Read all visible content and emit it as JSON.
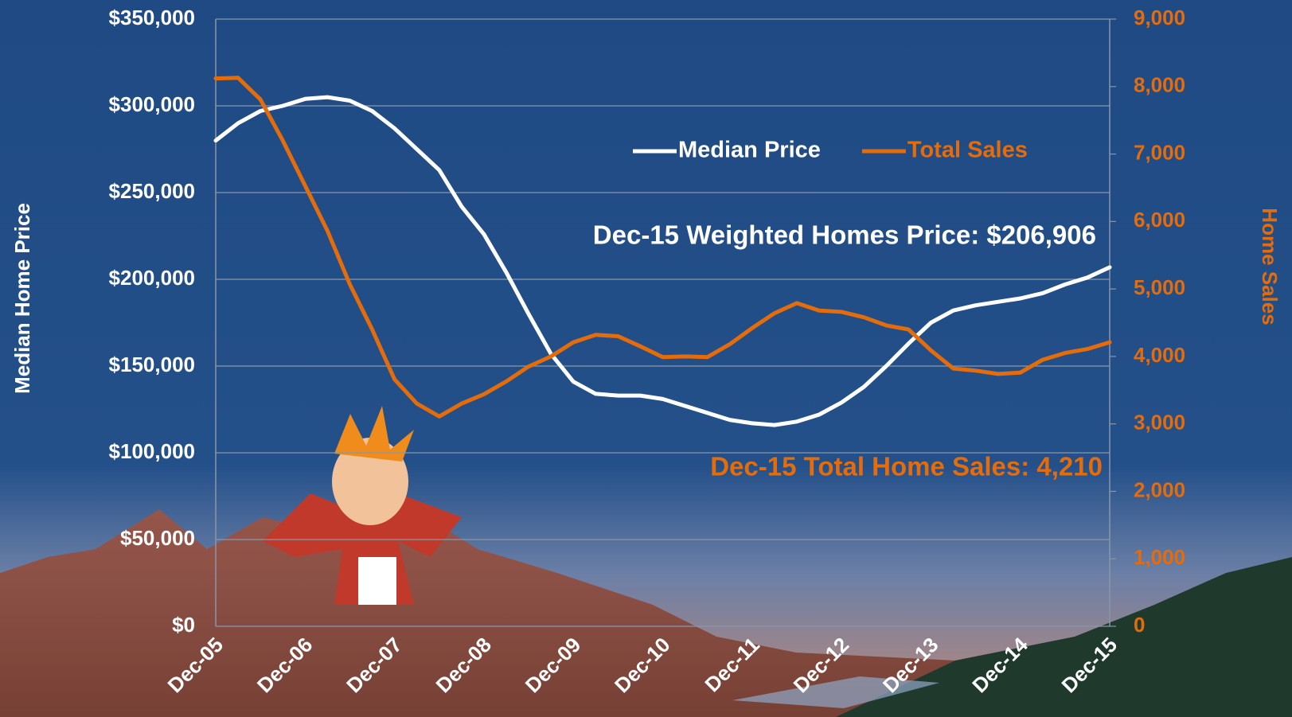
{
  "chart_data": {
    "type": "line",
    "y_label": "Median Home Price",
    "y2_label": "Home Sales",
    "annotations": [
      "Dec-15 Weighted Homes Price: $206,906",
      "Dec-15 Total Home Sales: 4,210"
    ],
    "legend": "upper right",
    "categories": [
      "Dec-05",
      null,
      null,
      null,
      "Dec-06",
      null,
      null,
      null,
      "Dec-07",
      null,
      null,
      null,
      "Dec-08",
      null,
      null,
      null,
      "Dec-09",
      null,
      null,
      null,
      "Dec-10",
      null,
      null,
      null,
      "Dec-11",
      null,
      null,
      null,
      "Dec-12",
      null,
      null,
      null,
      "Dec-13",
      null,
      null,
      null,
      "Dec-14",
      null,
      null,
      null,
      "Dec-15"
    ],
    "series": [
      {
        "name": "Median Price",
        "color": "#ffffff",
        "values": [
          280000,
          290000,
          297000,
          300000,
          304000,
          305000,
          303000,
          297000,
          287000,
          275000,
          263000,
          242000,
          226000,
          204000,
          180000,
          157000,
          141000,
          134000,
          133000,
          133000,
          131000,
          127000,
          123000,
          119000,
          117000,
          116000,
          118000,
          122000,
          129000,
          138000,
          150000,
          163000,
          175000,
          182000,
          185000,
          187000,
          189000,
          192000,
          197000,
          201000,
          206906
        ]
      },
      {
        "name": "Total Sales",
        "color": "#e46c0a",
        "axis": "y2",
        "values": [
          8120,
          8130,
          7810,
          7200,
          6530,
          5860,
          5070,
          4400,
          3660,
          3300,
          3110,
          3300,
          3440,
          3630,
          3850,
          4000,
          4210,
          4320,
          4300,
          4150,
          3990,
          4000,
          3990,
          4180,
          4420,
          4640,
          4790,
          4680,
          4660,
          4580,
          4460,
          4400,
          4090,
          3820,
          3790,
          3740,
          3760,
          3950,
          4050,
          4110,
          4210
        ]
      }
    ],
    "ylim": [
      0,
      350000
    ],
    "yticks": [
      {
        "value": 0,
        "label": "$0"
      },
      {
        "value": 50000,
        "label": "$50,000"
      },
      {
        "value": 100000,
        "label": "$100,000"
      },
      {
        "value": 150000,
        "label": "$150,000"
      },
      {
        "value": 200000,
        "label": "$200,000"
      },
      {
        "value": 250000,
        "label": "$250,000"
      },
      {
        "value": 300000,
        "label": "$300,000"
      },
      {
        "value": 350000,
        "label": "$350,000"
      }
    ],
    "y2lim": [
      0,
      9000
    ],
    "y2ticks": [
      0,
      {
        "value": 1000,
        "label": "1,000"
      },
      {
        "value": 2000,
        "label": "2,000"
      },
      {
        "value": 3000,
        "label": "3,000"
      },
      {
        "value": 4000,
        "label": "4,000"
      },
      {
        "value": 5000,
        "label": "5,000"
      },
      {
        "value": 6000,
        "label": "6,000"
      },
      {
        "value": 7000,
        "label": "7,000"
      },
      {
        "value": 8000,
        "label": "8,000"
      },
      {
        "value": 9000,
        "label": "9,000"
      }
    ],
    "grid": true
  }
}
